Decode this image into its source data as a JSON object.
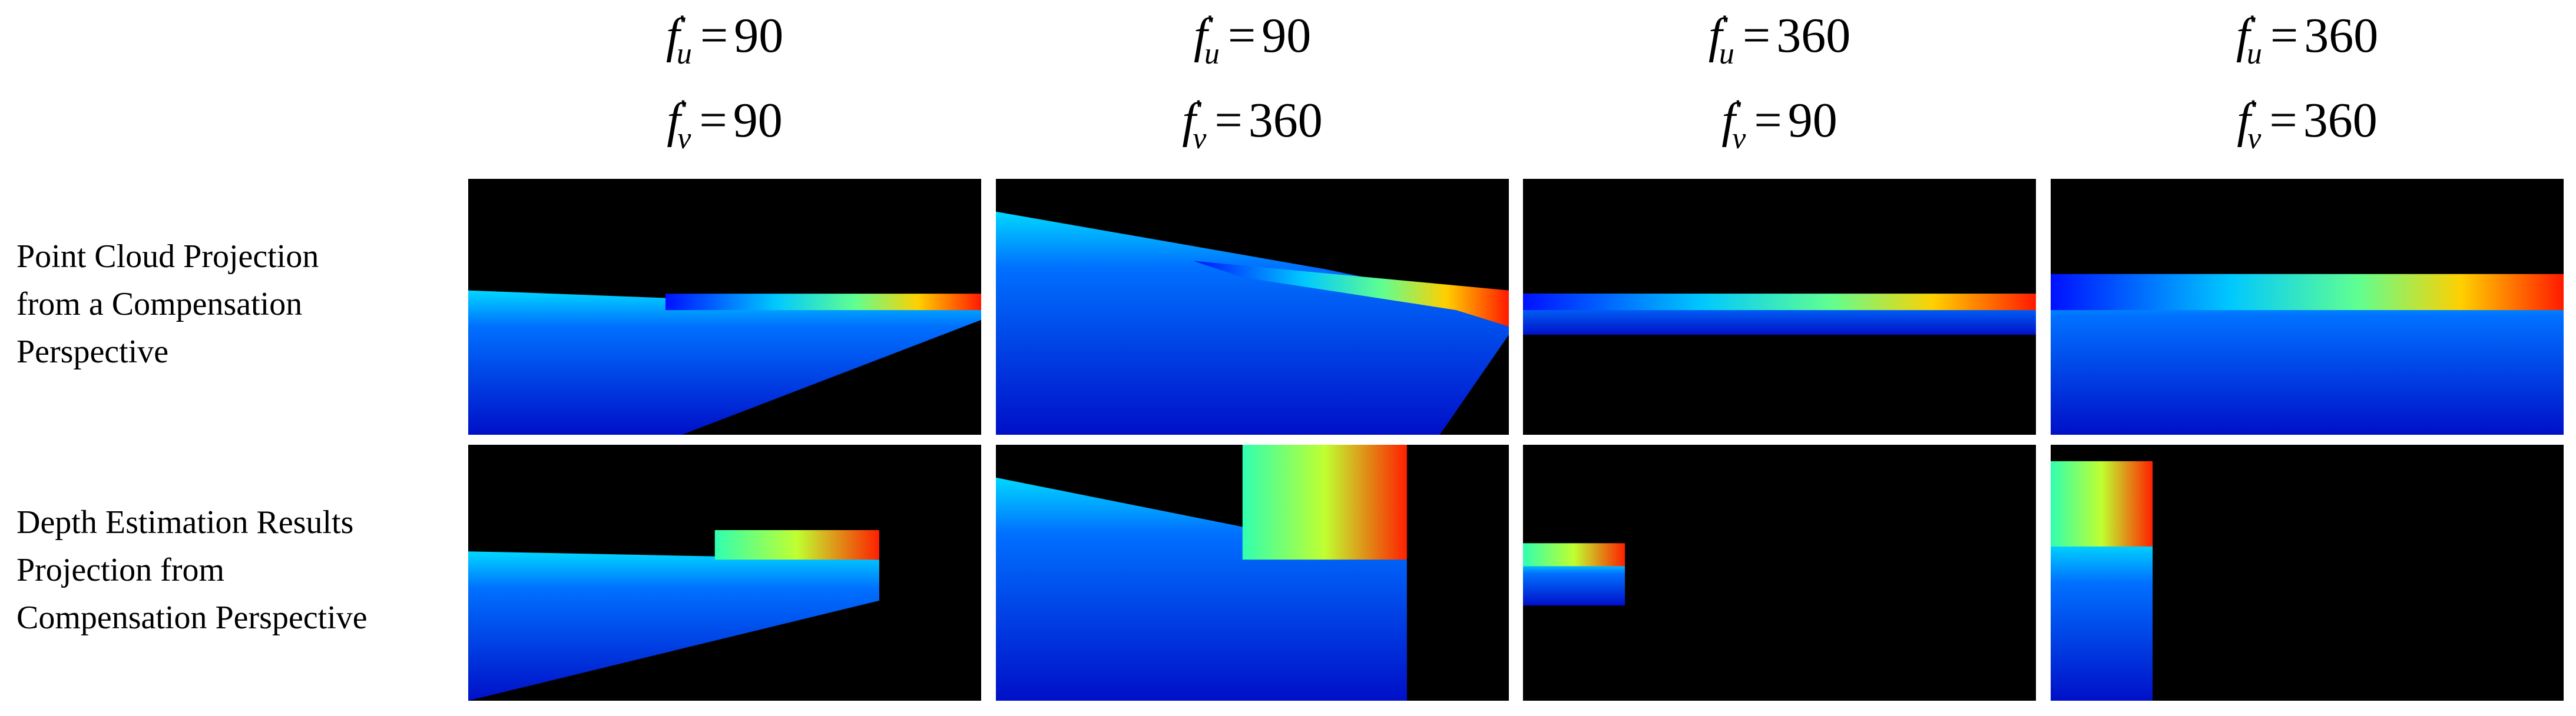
{
  "header": {
    "base": "f",
    "prime": "'",
    "sub_u": "u",
    "sub_v": "v",
    "equals": "="
  },
  "columns": [
    {
      "fu": "90",
      "fv": "90"
    },
    {
      "fu": "90",
      "fv": "360"
    },
    {
      "fu": "360",
      "fv": "90"
    },
    {
      "fu": "360",
      "fv": "360"
    }
  ],
  "rows": [
    {
      "label": [
        "Point Cloud Projection",
        "from a Compensation",
        "Perspective"
      ]
    },
    {
      "label": [
        "Depth Estimation Results",
        "Projection from",
        "Compensation Perspective"
      ]
    }
  ]
}
